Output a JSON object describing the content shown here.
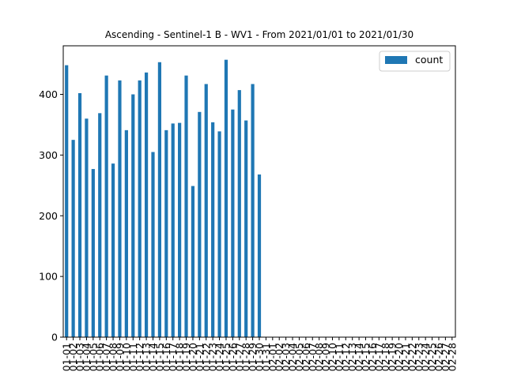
{
  "chart_data": {
    "type": "bar",
    "title": "Ascending - Sentinel-1 B - WV1 - From 2021/01/01 to 2021/01/30",
    "xlabel": "",
    "ylabel": "",
    "ylim": [
      0,
      480
    ],
    "yticks": [
      0,
      100,
      200,
      300,
      400
    ],
    "grid": false,
    "legend_position": "top-right",
    "color": "#1f77b4",
    "categories": [
      "01-01",
      "01-02",
      "01-03",
      "01-04",
      "01-05",
      "01-06",
      "01-07",
      "01-08",
      "01-09",
      "01-10",
      "01-11",
      "01-12",
      "01-13",
      "01-14",
      "01-15",
      "01-16",
      "01-17",
      "01-18",
      "01-19",
      "01-20",
      "01-21",
      "01-22",
      "01-23",
      "01-24",
      "01-25",
      "01-26",
      "01-27",
      "01-28",
      "01-29",
      "01-30",
      "01-31",
      "02-01",
      "02-02",
      "02-03",
      "02-04",
      "02-05",
      "02-06",
      "02-07",
      "02-08",
      "02-09",
      "02-10",
      "02-11",
      "02-12",
      "02-13",
      "02-14",
      "02-15",
      "02-16",
      "02-17",
      "02-18",
      "02-19",
      "02-20",
      "02-21",
      "02-22",
      "02-23",
      "02-24",
      "02-25",
      "02-26",
      "02-27",
      "02-28"
    ],
    "series": [
      {
        "name": "count",
        "values": [
          448,
          325,
          402,
          360,
          277,
          369,
          431,
          286,
          423,
          341,
          400,
          423,
          436,
          305,
          453,
          341,
          352,
          353,
          431,
          249,
          371,
          417,
          354,
          339,
          457,
          375,
          407,
          357,
          417,
          268,
          0,
          0,
          0,
          0,
          0,
          0,
          0,
          0,
          0,
          0,
          0,
          0,
          0,
          0,
          0,
          0,
          0,
          0,
          0,
          0,
          0,
          0,
          0,
          0,
          0,
          0,
          0,
          0,
          0
        ]
      }
    ]
  }
}
